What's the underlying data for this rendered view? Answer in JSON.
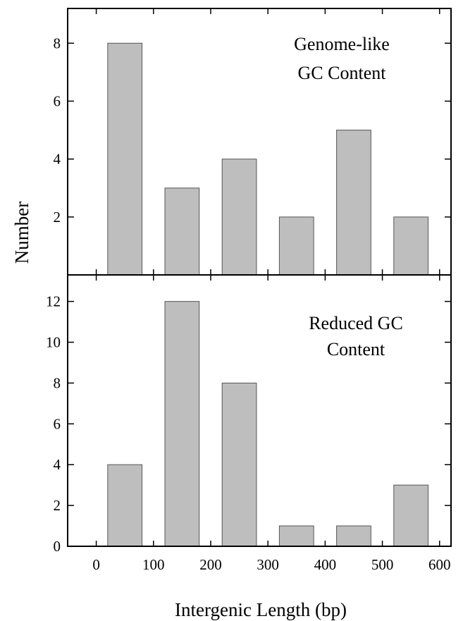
{
  "chart_data": [
    {
      "type": "bar",
      "panel": "top",
      "annotation": [
        "Genome-like",
        "GC Content"
      ],
      "bar_color": "#bebebe",
      "x": [
        50,
        150,
        250,
        350,
        450,
        550
      ],
      "values": [
        8,
        3,
        4,
        2,
        5,
        2
      ],
      "xlim": [
        -50,
        620
      ],
      "ylim": [
        0,
        9.2
      ],
      "yticks": [
        2,
        4,
        6,
        8
      ],
      "grid": false
    },
    {
      "type": "bar",
      "panel": "bottom",
      "annotation": [
        "Reduced GC",
        "Content"
      ],
      "bar_color": "#bebebe",
      "x": [
        50,
        150,
        250,
        350,
        450,
        550
      ],
      "values": [
        4,
        12,
        8,
        1,
        1,
        3
      ],
      "xlim": [
        -50,
        620
      ],
      "ylim": [
        0,
        13.3
      ],
      "yticks": [
        0,
        2,
        4,
        6,
        8,
        10,
        12
      ],
      "grid": false
    }
  ],
  "shared_axes": {
    "ylabel": "Number",
    "xlabel": "Intergenic Length (bp)",
    "xticks": [
      0,
      100,
      200,
      300,
      400,
      500,
      600
    ]
  }
}
